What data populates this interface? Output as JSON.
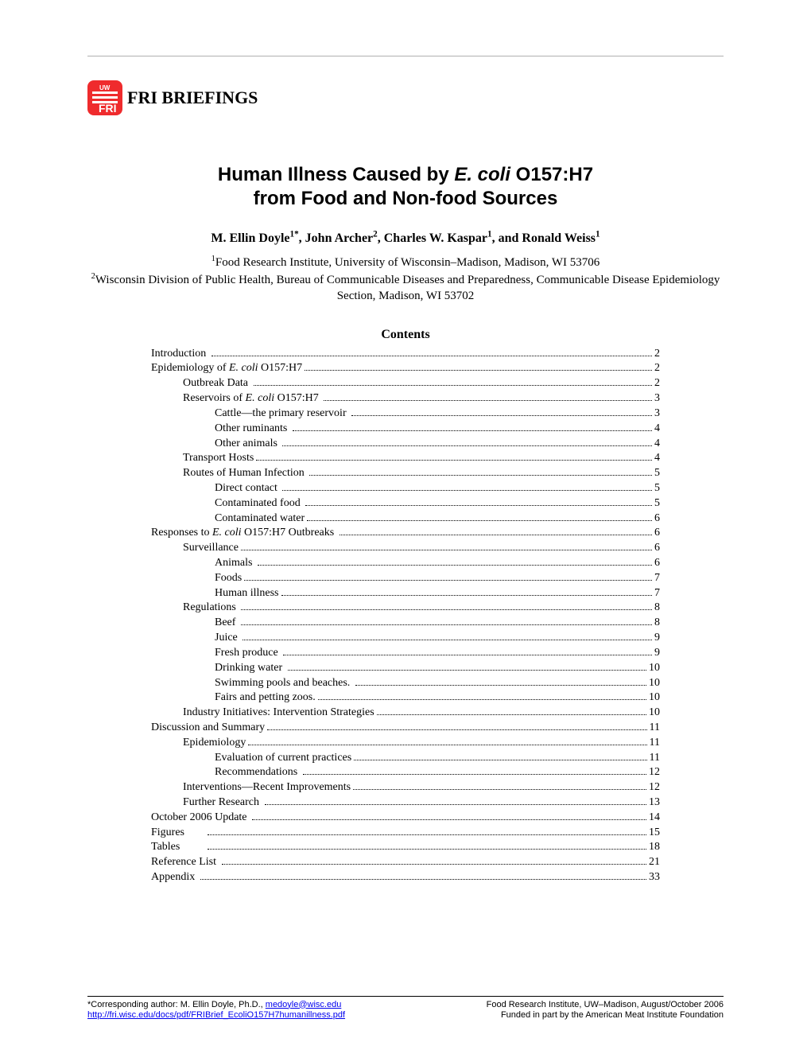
{
  "header": {
    "briefings_prefix": "FRI B",
    "briefings_rest": "RIEFINGS",
    "logo_bg_color": "#ef2b2d",
    "logo_text_color": "#ffffff"
  },
  "title": {
    "line1_pre": "Human Illness Caused by ",
    "line1_em": "E. coli",
    "line1_post": " O157:H7",
    "line2": "from Food and Non-food Sources"
  },
  "authors": {
    "a1_name": "M. Ellin Doyle",
    "a1_sup": "1*",
    "a2_name": "John Archer",
    "a2_sup": "2",
    "a3_name": "Charles W. Kaspar",
    "a3_sup": "1",
    "a4_name": "Ronald Weiss",
    "a4_sup": "1"
  },
  "affiliations": {
    "aff1_sup": "1",
    "aff1_text": "Food Research Institute, University of Wisconsin–Madison, Madison, WI 53706",
    "aff2_sup": "2",
    "aff2_text": "Wisconsin Division of Public Health, Bureau of Communicable Diseases and Preparedness, Communicable Disease Epidemiology Section, Madison, WI 53702"
  },
  "contents_heading": "Contents",
  "toc": [
    {
      "indent": 0,
      "label": "Introduction ",
      "page": "2"
    },
    {
      "indent": 0,
      "label_pre": "Epidemiology of ",
      "label_em": "E. coli",
      "label_post": " O157:H7",
      "page": "2"
    },
    {
      "indent": 1,
      "label": "Outbreak Data ",
      "page": "2"
    },
    {
      "indent": 1,
      "label_pre": "Reservoirs of ",
      "label_em": "E. coli",
      "label_post": " O157:H7 ",
      "page": "3"
    },
    {
      "indent": 2,
      "label": "Cattle—the primary reservoir ",
      "page": "3"
    },
    {
      "indent": 2,
      "label": "Other ruminants ",
      "page": "4"
    },
    {
      "indent": 2,
      "label": "Other animals ",
      "page": "4"
    },
    {
      "indent": 1,
      "label": "Transport Hosts",
      "page": "4"
    },
    {
      "indent": 1,
      "label": "Routes of Human Infection ",
      "page": "5"
    },
    {
      "indent": 2,
      "label": "Direct contact ",
      "page": "5"
    },
    {
      "indent": 2,
      "label": "Contaminated food ",
      "page": "5"
    },
    {
      "indent": 2,
      "label": "Contaminated water",
      "page": "6"
    },
    {
      "indent": 0,
      "label_pre": "Responses to ",
      "label_em": "E. coli",
      "label_post": " O157:H7 Outbreaks ",
      "page": "6"
    },
    {
      "indent": 1,
      "label": "Surveillance",
      "page": "6"
    },
    {
      "indent": 2,
      "label": "Animals ",
      "page": "6"
    },
    {
      "indent": 2,
      "label": "Foods",
      "page": "7"
    },
    {
      "indent": 2,
      "label": "Human illness",
      "page": "7"
    },
    {
      "indent": 1,
      "label": "Regulations ",
      "page": "8"
    },
    {
      "indent": 2,
      "label": "Beef ",
      "page": "8"
    },
    {
      "indent": 2,
      "label": "Juice ",
      "page": "9"
    },
    {
      "indent": 2,
      "label": "Fresh produce ",
      "page": "9"
    },
    {
      "indent": 2,
      "label": "Drinking water ",
      "page": "10"
    },
    {
      "indent": 2,
      "label": "Swimming pools and beaches. ",
      "page": "10"
    },
    {
      "indent": 2,
      "label": "Fairs and petting zoos.",
      "page": "10"
    },
    {
      "indent": 1,
      "label": "Industry Initiatives: Intervention Strategies",
      "page": "10"
    },
    {
      "indent": 0,
      "label": "Discussion and Summary",
      "page": "11"
    },
    {
      "indent": 1,
      "label": "Epidemiology",
      "page": "11"
    },
    {
      "indent": 2,
      "label": "Evaluation of current practices",
      "page": "11"
    },
    {
      "indent": 2,
      "label": "Recommendations ",
      "page": "12"
    },
    {
      "indent": 1,
      "label": "Interventions—Recent Improvements",
      "page": "12"
    },
    {
      "indent": 1,
      "label": "Further Research ",
      "page": "13"
    },
    {
      "indent": 0,
      "label": "October 2006 Update ",
      "page": "14"
    },
    {
      "indent": 0,
      "fixed": true,
      "label": "Figures",
      "page": "15"
    },
    {
      "indent": 0,
      "fixed": true,
      "label": "Tables",
      "page": "18"
    },
    {
      "indent": 0,
      "label": "Reference List ",
      "page": "21"
    },
    {
      "indent": 0,
      "label": "Appendix ",
      "page": "33"
    }
  ],
  "footer": {
    "left_line1_pre": "*Corresponding author: M. Ellin Doyle, Ph.D., ",
    "left_line1_link": "medoyle@wisc.edu",
    "left_line2_link": "http://fri.wisc.edu/docs/pdf/FRIBrief_EcoliO157H7humanillness.pdf",
    "right_line1": "Food Research Institute, UW–Madison, August/October 2006",
    "right_line2": "Funded in part by the American Meat Institute Foundation"
  }
}
